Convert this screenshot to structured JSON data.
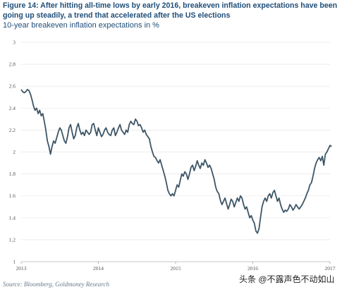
{
  "header": {
    "title": "Figure 14: After hitting all-time lows by early 2016, breakeven inflation expectations have been going up steadily, a trend that accelerated after the US elections",
    "subtitle": "10-year breakeven inflation expectations in %"
  },
  "footer": {
    "source": "Source: Bloomberg, Goldmoney Research",
    "watermark": "头条 @不露声色不动如山"
  },
  "colors": {
    "line": "#3d5566",
    "title": "#1f4e79",
    "grid": "#e6e6e6"
  },
  "chart_data": {
    "type": "line",
    "title": "10-year breakeven inflation expectations in %",
    "y_ticks": [
      "1",
      "1.2",
      "1.4",
      "1.6",
      "1.8",
      "2",
      "2.2",
      "2.4",
      "2.6",
      "2.8",
      "3"
    ],
    "x_ticks": [
      {
        "label": "2013",
        "x": 2013.0
      },
      {
        "label": "2014",
        "x": 2014.0
      },
      {
        "label": "2015",
        "x": 2015.0
      },
      {
        "label": "2016",
        "x": 2016.0
      },
      {
        "label": "2017",
        "x": 2017.0
      }
    ],
    "ylim": [
      1,
      3
    ],
    "xlim": [
      2013.0,
      2017.0
    ],
    "grid": true,
    "series": [
      {
        "points": [
          [
            2013.0,
            2.57
          ],
          [
            2013.02,
            2.55
          ],
          [
            2013.04,
            2.54
          ],
          [
            2013.06,
            2.55
          ],
          [
            2013.08,
            2.57
          ],
          [
            2013.1,
            2.56
          ],
          [
            2013.12,
            2.53
          ],
          [
            2013.14,
            2.48
          ],
          [
            2013.16,
            2.42
          ],
          [
            2013.18,
            2.38
          ],
          [
            2013.2,
            2.4
          ],
          [
            2013.22,
            2.35
          ],
          [
            2013.24,
            2.38
          ],
          [
            2013.26,
            2.33
          ],
          [
            2013.28,
            2.35
          ],
          [
            2013.3,
            2.28
          ],
          [
            2013.32,
            2.2
          ],
          [
            2013.34,
            2.1
          ],
          [
            2013.36,
            2.05
          ],
          [
            2013.38,
            1.98
          ],
          [
            2013.4,
            2.05
          ],
          [
            2013.42,
            2.1
          ],
          [
            2013.44,
            2.08
          ],
          [
            2013.46,
            2.13
          ],
          [
            2013.48,
            2.18
          ],
          [
            2013.5,
            2.22
          ],
          [
            2013.52,
            2.2
          ],
          [
            2013.54,
            2.15
          ],
          [
            2013.56,
            2.1
          ],
          [
            2013.58,
            2.08
          ],
          [
            2013.6,
            2.14
          ],
          [
            2013.62,
            2.22
          ],
          [
            2013.64,
            2.25
          ],
          [
            2013.66,
            2.18
          ],
          [
            2013.68,
            2.12
          ],
          [
            2013.7,
            2.15
          ],
          [
            2013.72,
            2.22
          ],
          [
            2013.74,
            2.26
          ],
          [
            2013.76,
            2.2
          ],
          [
            2013.78,
            2.16
          ],
          [
            2013.8,
            2.18
          ],
          [
            2013.82,
            2.15
          ],
          [
            2013.84,
            2.2
          ],
          [
            2013.86,
            2.18
          ],
          [
            2013.88,
            2.16
          ],
          [
            2013.9,
            2.18
          ],
          [
            2013.92,
            2.25
          ],
          [
            2013.94,
            2.26
          ],
          [
            2013.96,
            2.2
          ],
          [
            2013.98,
            2.15
          ],
          [
            2014.0,
            2.22
          ],
          [
            2014.02,
            2.18
          ],
          [
            2014.04,
            2.14
          ],
          [
            2014.06,
            2.16
          ],
          [
            2014.08,
            2.2
          ],
          [
            2014.1,
            2.22
          ],
          [
            2014.12,
            2.18
          ],
          [
            2014.14,
            2.16
          ],
          [
            2014.16,
            2.15
          ],
          [
            2014.18,
            2.2
          ],
          [
            2014.2,
            2.22
          ],
          [
            2014.22,
            2.15
          ],
          [
            2014.24,
            2.18
          ],
          [
            2014.26,
            2.22
          ],
          [
            2014.28,
            2.25
          ],
          [
            2014.3,
            2.2
          ],
          [
            2014.32,
            2.18
          ],
          [
            2014.34,
            2.16
          ],
          [
            2014.36,
            2.2
          ],
          [
            2014.38,
            2.18
          ],
          [
            2014.4,
            2.25
          ],
          [
            2014.42,
            2.28
          ],
          [
            2014.44,
            2.26
          ],
          [
            2014.46,
            2.25
          ],
          [
            2014.48,
            2.3
          ],
          [
            2014.5,
            2.28
          ],
          [
            2014.52,
            2.24
          ],
          [
            2014.54,
            2.25
          ],
          [
            2014.56,
            2.22
          ],
          [
            2014.58,
            2.18
          ],
          [
            2014.6,
            2.2
          ],
          [
            2014.62,
            2.16
          ],
          [
            2014.64,
            2.14
          ],
          [
            2014.66,
            2.12
          ],
          [
            2014.68,
            2.05
          ],
          [
            2014.7,
            2.0
          ],
          [
            2014.72,
            1.96
          ],
          [
            2014.74,
            1.95
          ],
          [
            2014.76,
            1.92
          ],
          [
            2014.78,
            1.9
          ],
          [
            2014.8,
            1.93
          ],
          [
            2014.82,
            1.88
          ],
          [
            2014.84,
            1.83
          ],
          [
            2014.86,
            1.78
          ],
          [
            2014.88,
            1.72
          ],
          [
            2014.9,
            1.65
          ],
          [
            2014.92,
            1.62
          ],
          [
            2014.94,
            1.6
          ],
          [
            2014.96,
            1.62
          ],
          [
            2014.98,
            1.6
          ],
          [
            2015.0,
            1.65
          ],
          [
            2015.02,
            1.7
          ],
          [
            2015.04,
            1.68
          ],
          [
            2015.06,
            1.74
          ],
          [
            2015.08,
            1.8
          ],
          [
            2015.1,
            1.78
          ],
          [
            2015.12,
            1.82
          ],
          [
            2015.14,
            1.8
          ],
          [
            2015.16,
            1.75
          ],
          [
            2015.18,
            1.8
          ],
          [
            2015.2,
            1.86
          ],
          [
            2015.22,
            1.88
          ],
          [
            2015.24,
            1.83
          ],
          [
            2015.26,
            1.87
          ],
          [
            2015.28,
            1.92
          ],
          [
            2015.3,
            1.88
          ],
          [
            2015.32,
            1.85
          ],
          [
            2015.34,
            1.9
          ],
          [
            2015.36,
            1.88
          ],
          [
            2015.38,
            1.93
          ],
          [
            2015.4,
            1.9
          ],
          [
            2015.42,
            1.86
          ],
          [
            2015.44,
            1.88
          ],
          [
            2015.46,
            1.85
          ],
          [
            2015.48,
            1.8
          ],
          [
            2015.5,
            1.75
          ],
          [
            2015.52,
            1.68
          ],
          [
            2015.54,
            1.64
          ],
          [
            2015.56,
            1.62
          ],
          [
            2015.58,
            1.56
          ],
          [
            2015.6,
            1.52
          ],
          [
            2015.62,
            1.55
          ],
          [
            2015.64,
            1.58
          ],
          [
            2015.66,
            1.53
          ],
          [
            2015.68,
            1.48
          ],
          [
            2015.7,
            1.52
          ],
          [
            2015.72,
            1.57
          ],
          [
            2015.74,
            1.55
          ],
          [
            2015.76,
            1.5
          ],
          [
            2015.78,
            1.54
          ],
          [
            2015.8,
            1.58
          ],
          [
            2015.82,
            1.55
          ],
          [
            2015.84,
            1.6
          ],
          [
            2015.86,
            1.58
          ],
          [
            2015.88,
            1.52
          ],
          [
            2015.9,
            1.48
          ],
          [
            2015.92,
            1.5
          ],
          [
            2015.94,
            1.45
          ],
          [
            2015.96,
            1.4
          ],
          [
            2015.98,
            1.42
          ],
          [
            2016.0,
            1.38
          ],
          [
            2016.02,
            1.35
          ],
          [
            2016.04,
            1.28
          ],
          [
            2016.06,
            1.26
          ],
          [
            2016.08,
            1.3
          ],
          [
            2016.1,
            1.4
          ],
          [
            2016.12,
            1.5
          ],
          [
            2016.14,
            1.55
          ],
          [
            2016.16,
            1.58
          ],
          [
            2016.18,
            1.55
          ],
          [
            2016.2,
            1.6
          ],
          [
            2016.22,
            1.62
          ],
          [
            2016.24,
            1.58
          ],
          [
            2016.26,
            1.63
          ],
          [
            2016.28,
            1.65
          ],
          [
            2016.3,
            1.6
          ],
          [
            2016.32,
            1.55
          ],
          [
            2016.34,
            1.58
          ],
          [
            2016.36,
            1.52
          ],
          [
            2016.38,
            1.48
          ],
          [
            2016.4,
            1.45
          ],
          [
            2016.42,
            1.47
          ],
          [
            2016.44,
            1.46
          ],
          [
            2016.46,
            1.48
          ],
          [
            2016.48,
            1.52
          ],
          [
            2016.5,
            1.5
          ],
          [
            2016.52,
            1.47
          ],
          [
            2016.54,
            1.49
          ],
          [
            2016.56,
            1.52
          ],
          [
            2016.58,
            1.5
          ],
          [
            2016.6,
            1.48
          ],
          [
            2016.62,
            1.5
          ],
          [
            2016.64,
            1.52
          ],
          [
            2016.66,
            1.55
          ],
          [
            2016.68,
            1.58
          ],
          [
            2016.7,
            1.62
          ],
          [
            2016.72,
            1.65
          ],
          [
            2016.74,
            1.7
          ],
          [
            2016.76,
            1.72
          ],
          [
            2016.78,
            1.78
          ],
          [
            2016.8,
            1.85
          ],
          [
            2016.82,
            1.9
          ],
          [
            2016.84,
            1.93
          ],
          [
            2016.86,
            1.95
          ],
          [
            2016.88,
            1.92
          ],
          [
            2016.9,
            1.96
          ],
          [
            2016.92,
            1.88
          ],
          [
            2016.94,
            1.98
          ],
          [
            2016.96,
            2.0
          ],
          [
            2016.98,
            2.03
          ],
          [
            2017.0,
            2.06
          ],
          [
            2017.02,
            2.05
          ]
        ]
      }
    ]
  }
}
